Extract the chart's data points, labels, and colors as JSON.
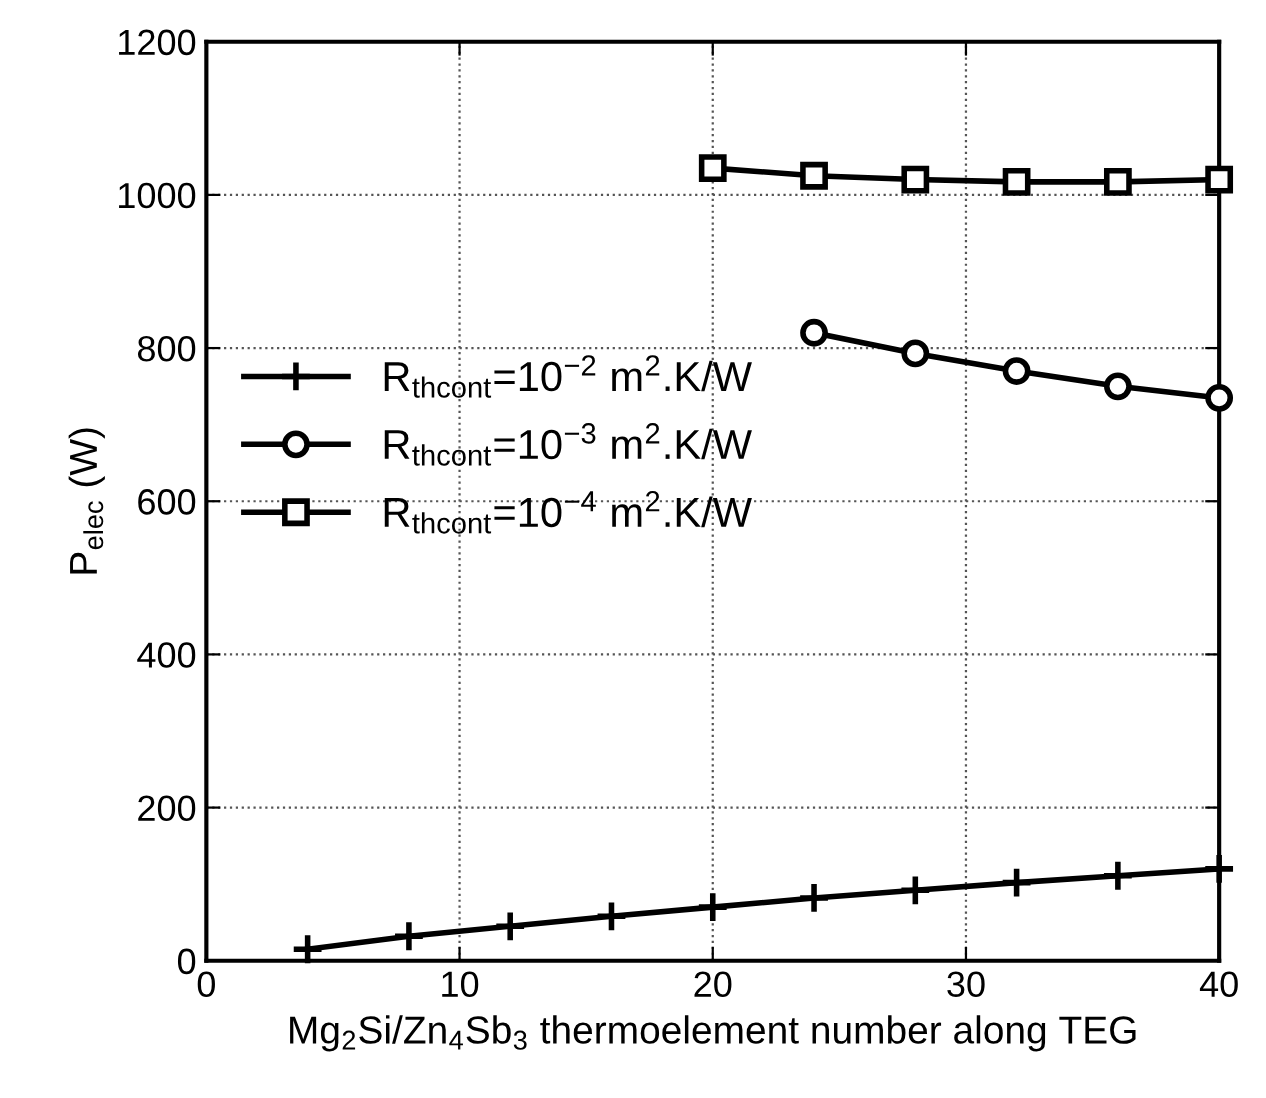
{
  "chart_data": {
    "type": "line",
    "xlabel": "Mg$_{2}$Si/Zn$_{4}$Sb$_{3}$ thermoelement number along TEG",
    "ylabel": "P$_{elec}$ (W)",
    "xlim": [
      0,
      40
    ],
    "ylim": [
      0,
      1200
    ],
    "xticks": [
      0,
      10,
      20,
      30,
      40
    ],
    "yticks": [
      0,
      200,
      400,
      600,
      800,
      1000,
      1200
    ],
    "grid": true,
    "legend": "left",
    "series": [
      {
        "name": "R$_{thcont}$=10$^{−2}$ m$^{2}$.K/W",
        "color": "#000000",
        "marker": "cross",
        "x": [
          4,
          8,
          12,
          16,
          20,
          24,
          28,
          32,
          36,
          40
        ],
        "values": [
          15,
          32,
          45,
          58,
          70,
          82,
          92,
          102,
          111,
          120
        ]
      },
      {
        "name": "R$_{thcont}$=10$^{−3}$ m$^{2}$.K/W",
        "color": "#000000",
        "marker": "circle",
        "x": [
          24,
          28,
          32,
          36,
          40
        ],
        "values": [
          820,
          793,
          770,
          750,
          735
        ]
      },
      {
        "name": "R$_{thcont}$=10$^{−4}$ m$^{2}$.K/W",
        "color": "#000000",
        "marker": "square",
        "x": [
          20,
          24,
          28,
          32,
          36,
          40
        ],
        "values": [
          1035,
          1025,
          1020,
          1017,
          1017,
          1020
        ]
      }
    ]
  }
}
